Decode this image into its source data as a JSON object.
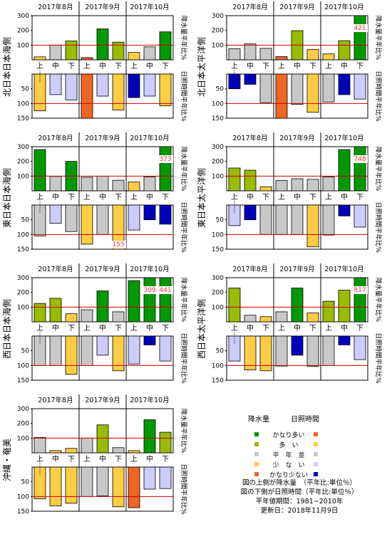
{
  "colors": {
    "precip": {
      "很多": "#009900",
      "多": "#99bb00",
      "平": "#c8c8c8",
      "少": "#ffcc44",
      "很少": "#ee6622"
    },
    "sun": {
      "很多": "#ee6622",
      "多": "#ffcc44",
      "平": "#c8c8c8",
      "少": "#ccccff",
      "很少": "#0000bb"
    },
    "normal_line": "#cc0000",
    "overflow_label": "#ff3333"
  },
  "months": [
    "2017年8月",
    "2017年9月",
    "2017年10月"
  ],
  "periods": [
    "上",
    "中",
    "下"
  ],
  "legend": {
    "precip_title": "降水量",
    "sun_title": "日照時間",
    "rows": [
      {
        "label": "かなり多い",
        "precip": "很多",
        "sun": "很多"
      },
      {
        "label": "多　い",
        "precip": "多",
        "sun": "多"
      },
      {
        "label": "平　年　並",
        "precip": "平",
        "sun": "平"
      },
      {
        "label": "少　な　い",
        "precip": "少",
        "sun": "少"
      },
      {
        "label": "かなり少ない",
        "precip": "很少",
        "sun": "很少"
      }
    ]
  },
  "notes": [
    "図の上側が降水量　（平年比:単位％）",
    "図の下側が日照時間（平年比:単位％）",
    "平年値期間：1981−2010年",
    "更新日：2018年11月9日"
  ],
  "chart_data": [
    {
      "type": "bar",
      "region": "北日本日本海側",
      "precip_axis_label": "降水量平年比%",
      "sun_axis_label": "日照時間平年比%",
      "precip_ticks": [
        100,
        200,
        300
      ],
      "sun_ticks": [
        50,
        100,
        150
      ],
      "precip": [
        {
          "v": 20,
          "c": "少"
        },
        {
          "v": 100,
          "c": "平"
        },
        {
          "v": 128,
          "c": "多"
        },
        {
          "v": 15,
          "c": "很少"
        },
        {
          "v": 210,
          "c": "很多"
        },
        {
          "v": 120,
          "c": "多"
        },
        {
          "v": 50,
          "c": "少"
        },
        {
          "v": 88,
          "c": "平"
        },
        {
          "v": 190,
          "c": "很多"
        }
      ],
      "precip_overflow": [
        null,
        null,
        null,
        null,
        null,
        null,
        null,
        null,
        null
      ],
      "sun": [
        {
          "v": 125,
          "c": "多"
        },
        {
          "v": 70,
          "c": "少"
        },
        {
          "v": 88,
          "c": "少"
        },
        {
          "v": 150,
          "c": "很多"
        },
        {
          "v": 75,
          "c": "少"
        },
        {
          "v": 122,
          "c": "多"
        },
        {
          "v": 80,
          "c": "很少"
        },
        {
          "v": 75,
          "c": "少"
        },
        {
          "v": 108,
          "c": "多"
        }
      ],
      "sun_overflow": [
        null,
        null,
        null,
        null,
        null,
        null,
        null,
        null,
        null
      ]
    },
    {
      "type": "bar",
      "region": "北日本太平洋側",
      "precip_axis_label": "降水量平年比%",
      "sun_axis_label": "日照時間平年比%",
      "precip_ticks": [
        100,
        200,
        300
      ],
      "sun_ticks": [
        50,
        100,
        150
      ],
      "precip": [
        {
          "v": 75,
          "c": "平"
        },
        {
          "v": 108,
          "c": "平"
        },
        {
          "v": 78,
          "c": "平"
        },
        {
          "v": 22,
          "c": "很少"
        },
        {
          "v": 198,
          "c": "多"
        },
        {
          "v": 70,
          "c": "少"
        },
        {
          "v": 40,
          "c": "少"
        },
        {
          "v": 130,
          "c": "多"
        },
        {
          "v": 421,
          "c": "很多"
        }
      ],
      "precip_overflow": [
        null,
        null,
        null,
        null,
        null,
        null,
        null,
        null,
        "421"
      ],
      "sun": [
        {
          "v": 50,
          "c": "很少"
        },
        {
          "v": 35,
          "c": "很少"
        },
        {
          "v": 97,
          "c": "平"
        },
        {
          "v": 150,
          "c": "很多"
        },
        {
          "v": 103,
          "c": "平"
        },
        {
          "v": 130,
          "c": "多"
        },
        {
          "v": 95,
          "c": "平"
        },
        {
          "v": 70,
          "c": "很少"
        },
        {
          "v": 85,
          "c": "少"
        }
      ],
      "sun_overflow": [
        null,
        null,
        null,
        null,
        null,
        null,
        null,
        null,
        null
      ]
    },
    {
      "type": "bar",
      "region": "東日本日本海側",
      "precip_axis_label": "降水量平年比%",
      "sun_axis_label": "日照時間平年比%",
      "precip_ticks": [
        100,
        200,
        300
      ],
      "sun_ticks": [
        50,
        100,
        150
      ],
      "precip": [
        {
          "v": 280,
          "c": "很多"
        },
        {
          "v": 98,
          "c": "平"
        },
        {
          "v": 200,
          "c": "很多"
        },
        {
          "v": 92,
          "c": "平"
        },
        {
          "v": 100,
          "c": "平"
        },
        {
          "v": 72,
          "c": "平"
        },
        {
          "v": 60,
          "c": "少"
        },
        {
          "v": 95,
          "c": "平"
        },
        {
          "v": 373,
          "c": "很多"
        }
      ],
      "precip_overflow": [
        null,
        null,
        null,
        null,
        null,
        null,
        null,
        null,
        "373"
      ],
      "sun": [
        {
          "v": 105,
          "c": "平"
        },
        {
          "v": 62,
          "c": "少"
        },
        {
          "v": 90,
          "c": "平"
        },
        {
          "v": 133,
          "c": "多"
        },
        {
          "v": 100,
          "c": "平"
        },
        {
          "v": 155,
          "c": "多"
        },
        {
          "v": 85,
          "c": "少"
        },
        {
          "v": 50,
          "c": "很少"
        },
        {
          "v": 65,
          "c": "很少"
        }
      ],
      "sun_overflow": [
        null,
        null,
        null,
        null,
        null,
        "155",
        null,
        null,
        null
      ]
    },
    {
      "type": "bar",
      "region": "東日本太平洋側",
      "precip_axis_label": "降水量平年比%",
      "sun_axis_label": "日照時間平年比%",
      "precip_ticks": [
        100,
        200,
        300
      ],
      "sun_ticks": [
        50,
        100,
        150
      ],
      "precip": [
        {
          "v": 155,
          "c": "多"
        },
        {
          "v": 140,
          "c": "多"
        },
        {
          "v": 28,
          "c": "少"
        },
        {
          "v": 70,
          "c": "平"
        },
        {
          "v": 82,
          "c": "平"
        },
        {
          "v": 78,
          "c": "平"
        },
        {
          "v": 95,
          "c": "平"
        },
        {
          "v": 280,
          "c": "很多"
        },
        {
          "v": 748,
          "c": "很多"
        }
      ],
      "precip_overflow": [
        null,
        null,
        null,
        null,
        null,
        null,
        null,
        null,
        "748"
      ],
      "sun": [
        {
          "v": 70,
          "c": "少"
        },
        {
          "v": 50,
          "c": "很少"
        },
        {
          "v": 100,
          "c": "平"
        },
        {
          "v": 100,
          "c": "平"
        },
        {
          "v": 100,
          "c": "平"
        },
        {
          "v": 142,
          "c": "多"
        },
        {
          "v": 102,
          "c": "平"
        },
        {
          "v": 37,
          "c": "很少"
        },
        {
          "v": 75,
          "c": "少"
        }
      ],
      "sun_overflow": [
        null,
        null,
        null,
        null,
        null,
        null,
        null,
        null,
        null
      ]
    },
    {
      "type": "bar",
      "region": "西日本日本海側",
      "precip_axis_label": "降水量平年比%",
      "sun_axis_label": "日照時間平年比%",
      "precip_ticks": [
        100,
        200,
        300
      ],
      "sun_ticks": [
        50,
        100,
        150
      ],
      "precip": [
        {
          "v": 125,
          "c": "多"
        },
        {
          "v": 160,
          "c": "多"
        },
        {
          "v": 55,
          "c": "少"
        },
        {
          "v": 82,
          "c": "平"
        },
        {
          "v": 210,
          "c": "很多"
        },
        {
          "v": 68,
          "c": "平"
        },
        {
          "v": 280,
          "c": "很多"
        },
        {
          "v": 309,
          "c": "很多"
        },
        {
          "v": 441,
          "c": "很多"
        }
      ],
      "precip_overflow": [
        null,
        null,
        null,
        null,
        null,
        null,
        null,
        "309",
        "441"
      ],
      "sun": [
        {
          "v": 100,
          "c": "平"
        },
        {
          "v": 100,
          "c": "平"
        },
        {
          "v": 130,
          "c": "多"
        },
        {
          "v": 100,
          "c": "平"
        },
        {
          "v": 65,
          "c": "少"
        },
        {
          "v": 118,
          "c": "多"
        },
        {
          "v": 95,
          "c": "少"
        },
        {
          "v": 30,
          "c": "很少"
        },
        {
          "v": 85,
          "c": "少"
        }
      ],
      "sun_overflow": [
        null,
        null,
        null,
        null,
        null,
        null,
        null,
        null,
        null
      ]
    },
    {
      "type": "bar",
      "region": "西日本太平洋側",
      "precip_axis_label": "降水量平年比%",
      "sun_axis_label": "日照時間平年比%",
      "precip_ticks": [
        100,
        200,
        300
      ],
      "sun_ticks": [
        50,
        100,
        150
      ],
      "precip": [
        {
          "v": 230,
          "c": "多"
        },
        {
          "v": 45,
          "c": "平"
        },
        {
          "v": 35,
          "c": "少"
        },
        {
          "v": 68,
          "c": "平"
        },
        {
          "v": 230,
          "c": "很多"
        },
        {
          "v": 60,
          "c": "少"
        },
        {
          "v": 140,
          "c": "多"
        },
        {
          "v": 215,
          "c": "多"
        },
        {
          "v": 817,
          "c": "很多"
        }
      ],
      "precip_overflow": [
        null,
        null,
        null,
        null,
        null,
        null,
        null,
        null,
        "817"
      ],
      "sun": [
        {
          "v": 85,
          "c": "少"
        },
        {
          "v": 115,
          "c": "多"
        },
        {
          "v": 118,
          "c": "多"
        },
        {
          "v": 102,
          "c": "平"
        },
        {
          "v": 65,
          "c": "很少"
        },
        {
          "v": 103,
          "c": "平"
        },
        {
          "v": 100,
          "c": "平"
        },
        {
          "v": 30,
          "c": "很少"
        },
        {
          "v": 80,
          "c": "少"
        }
      ],
      "sun_overflow": [
        null,
        null,
        null,
        null,
        null,
        null,
        null,
        null,
        null
      ]
    },
    {
      "type": "bar",
      "region": "沖縄・奄美",
      "precip_axis_label": "降水量平年比%",
      "sun_axis_label": "日照時間平年比%",
      "precip_ticks": [
        100,
        200,
        300
      ],
      "sun_ticks": [
        50,
        100,
        150
      ],
      "precip": [
        {
          "v": 105,
          "c": "平"
        },
        {
          "v": 15,
          "c": "少"
        },
        {
          "v": 30,
          "c": "少"
        },
        {
          "v": 100,
          "c": "平"
        },
        {
          "v": 190,
          "c": "多"
        },
        {
          "v": 35,
          "c": "平"
        },
        {
          "v": 15,
          "c": "少"
        },
        {
          "v": 225,
          "c": "很多"
        },
        {
          "v": 140,
          "c": "多"
        }
      ],
      "precip_overflow": [
        null,
        null,
        null,
        null,
        null,
        null,
        null,
        null,
        null
      ],
      "sun": [
        {
          "v": 108,
          "c": "多"
        },
        {
          "v": 132,
          "c": "多"
        },
        {
          "v": 123,
          "c": "多"
        },
        {
          "v": 100,
          "c": "平"
        },
        {
          "v": 98,
          "c": "平"
        },
        {
          "v": 135,
          "c": "多"
        },
        {
          "v": 138,
          "c": "很多"
        },
        {
          "v": 75,
          "c": "少"
        },
        {
          "v": 73,
          "c": "少"
        }
      ],
      "sun_overflow": [
        null,
        null,
        null,
        null,
        null,
        null,
        null,
        null,
        null
      ]
    }
  ]
}
